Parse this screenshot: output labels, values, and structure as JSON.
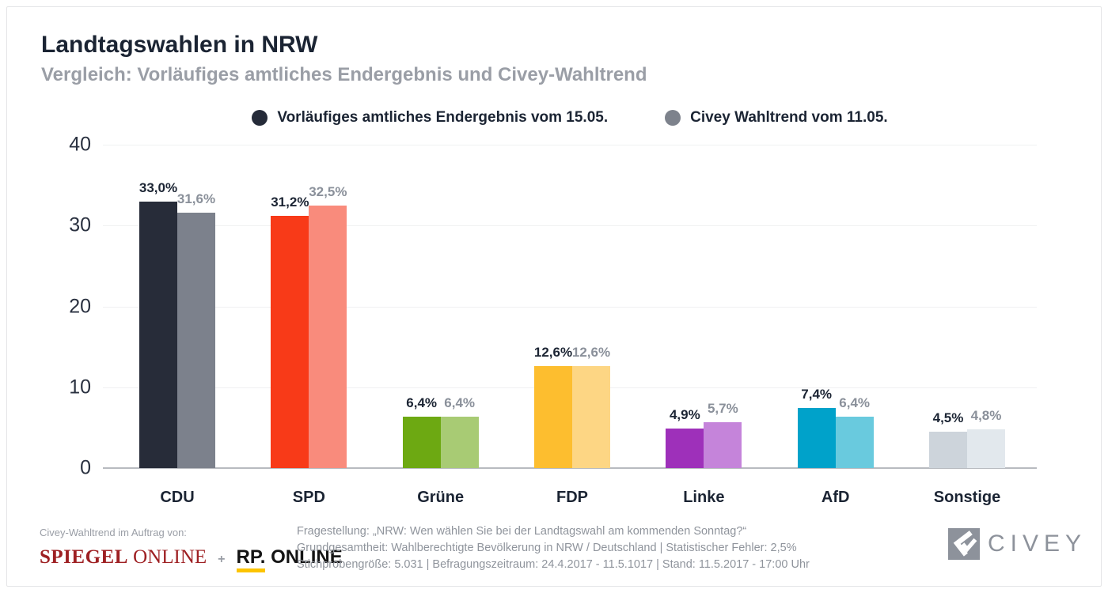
{
  "header": {
    "title": "Landtagswahlen in NRW",
    "subtitle": "Vergleich: Vorläufiges amtliches Endergebnis und Civey-Wahltrend"
  },
  "legend": [
    {
      "label": "Vorläufiges amtliches Endergebnis vom 15.05.",
      "color": "#252b39"
    },
    {
      "label": "Civey Wahltrend vom 11.05.",
      "color": "#7d828c"
    }
  ],
  "chart_data": {
    "type": "bar",
    "title": "Landtagswahlen in NRW",
    "subtitle": "Vergleich: Vorläufiges amtliches Endergebnis und Civey-Wahltrend",
    "categories": [
      "CDU",
      "SPD",
      "Grüne",
      "FDP",
      "Linke",
      "AfD",
      "Sonstige"
    ],
    "series": [
      {
        "name": "Vorläufiges amtliches Endergebnis vom 15.05.",
        "values": [
          33.0,
          31.2,
          6.4,
          12.6,
          4.9,
          7.4,
          4.5
        ],
        "labels": [
          "33,0%",
          "31,2%",
          "6,4%",
          "12,6%",
          "4,9%",
          "7,4%",
          "4,5%"
        ],
        "colors": [
          "#272c39",
          "#f83a18",
          "#6da912",
          "#fdbe2f",
          "#9e30ba",
          "#00a2ca",
          "#cdd4db"
        ]
      },
      {
        "name": "Civey Wahltrend vom 11.05.",
        "values": [
          31.6,
          32.5,
          6.4,
          12.6,
          5.7,
          6.4,
          4.8
        ],
        "labels": [
          "31,6%",
          "32,5%",
          "6,4%",
          "12,6%",
          "5,7%",
          "6,4%",
          "4,8%"
        ],
        "colors": [
          "#7c818c",
          "#f98b7c",
          "#a8cb74",
          "#fdd684",
          "#c584da",
          "#69cade",
          "#e2e8ed"
        ]
      }
    ],
    "xlabel": "",
    "ylabel": "",
    "ylim": [
      0,
      40
    ],
    "yticks": [
      0,
      10,
      20,
      30,
      40
    ],
    "grid": true,
    "legend_position": "top"
  },
  "footer": {
    "commission": "Civey-Wahltrend im Auftrag von:",
    "sponsors": {
      "spiegel_bold": "SPIEGEL",
      "spiegel_regular": "ONLINE",
      "plus": "+",
      "rp_bold": "RP.",
      "rp_regular": "ONLINE"
    },
    "methodology": [
      "Fragestellung: „NRW: Wen wählen Sie bei der Landtagswahl am kommenden Sonntag?“",
      "Grundgesamtheit: Wahlberechtigte Bevölkerung in NRW / Deutschland | Statistischer Fehler: 2,5%",
      "Stichprobengröße: 5.031 | Befragungszeitraum: 24.4.2017 - 11.5.1017 | Stand: 11.5.2017 - 17:00 Uhr"
    ],
    "civey_logo_text": "CIVEY"
  },
  "colors": {
    "title": "#1b2433",
    "subtitle": "#9a9ea6",
    "gridline": "#f0f1f2",
    "baseline": "#b8bbc0",
    "value_label_official": "#1b2433",
    "value_label_civey": "#8a909a",
    "card_border": "#e4e5e7",
    "spiegel_red": "#9e2023",
    "rp_yellow": "#fcc400",
    "civey_gray": "#8d929b"
  }
}
